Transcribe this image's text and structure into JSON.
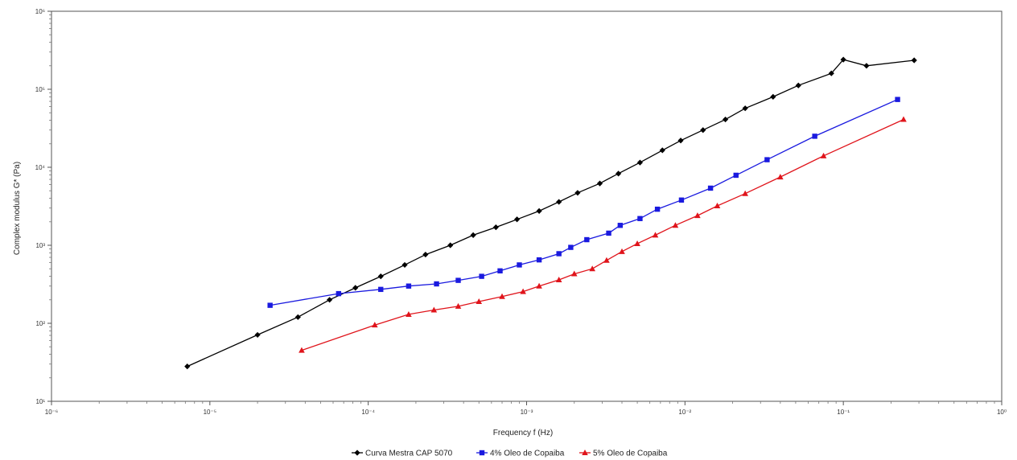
{
  "chart_data": {
    "type": "line",
    "title": "",
    "xlabel": "Frequency f (Hz)",
    "ylabel": "Complex modulus G* (Pa)",
    "xscale": "log",
    "yscale": "log",
    "xlim": [
      1e-06,
      1
    ],
    "ylim": [
      10,
      1000000
    ],
    "x_tick_labels": [
      "10⁻⁶",
      "10⁻⁵",
      "10⁻⁴",
      "10⁻³",
      "10⁻²",
      "10⁻¹",
      "10⁰"
    ],
    "y_tick_labels": [
      "10¹",
      "10²",
      "10³",
      "10⁴",
      "10⁵",
      "10⁶"
    ],
    "grid": false,
    "legend_position": "bottom-center",
    "series": [
      {
        "name": "Curva Mestra CAP 5070",
        "color": "#000000",
        "marker": "diamond",
        "x": [
          7.2e-06,
          2e-05,
          3.6e-05,
          5.7e-05,
          8.3e-05,
          0.00012,
          0.00017,
          0.00023,
          0.00033,
          0.00046,
          0.00064,
          0.00087,
          0.0012,
          0.0016,
          0.0021,
          0.0029,
          0.0038,
          0.0052,
          0.0072,
          0.0094,
          0.013,
          0.018,
          0.024,
          0.036,
          0.052,
          0.084,
          0.14,
          0.28,
          0.1
        ],
        "y": [
          28,
          71,
          120,
          200,
          285,
          400,
          560,
          760,
          1000,
          1350,
          1700,
          2150,
          2750,
          3600,
          4700,
          6200,
          8300,
          11500,
          16500,
          22000,
          30000,
          41000,
          57000,
          80000,
          112000,
          160000,
          200000,
          235000,
          240000
        ]
      },
      {
        "name": "4% Oleo de Copaiba",
        "color": "#1a1adf",
        "marker": "square",
        "x": [
          2.4e-05,
          6.5e-05,
          0.00012,
          0.00018,
          0.00027,
          0.00037,
          0.00052,
          0.00068,
          0.0009,
          0.0012,
          0.0016,
          0.0019,
          0.0024,
          0.0033,
          0.0039,
          0.0052,
          0.0067,
          0.0095,
          0.0145,
          0.021,
          0.033,
          0.066,
          0.22
        ],
        "y": [
          170,
          240,
          272,
          300,
          320,
          355,
          400,
          470,
          560,
          650,
          780,
          940,
          1180,
          1430,
          1800,
          2200,
          2900,
          3800,
          5400,
          7900,
          12500,
          25000,
          74000
        ]
      },
      {
        "name": "5% Oleo de Copaiba",
        "color": "#e0141b",
        "marker": "triangle",
        "x": [
          3.8e-05,
          0.00011,
          0.00018,
          0.00026,
          0.00037,
          0.0005,
          0.0007,
          0.00095,
          0.0012,
          0.0016,
          0.002,
          0.0026,
          0.0032,
          0.004,
          0.005,
          0.0065,
          0.0087,
          0.012,
          0.016,
          0.024,
          0.04,
          0.075,
          0.24
        ],
        "y": [
          45,
          95,
          130,
          148,
          165,
          190,
          220,
          255,
          300,
          360,
          430,
          500,
          640,
          830,
          1050,
          1350,
          1800,
          2400,
          3200,
          4600,
          7500,
          14000,
          41000
        ]
      }
    ]
  }
}
